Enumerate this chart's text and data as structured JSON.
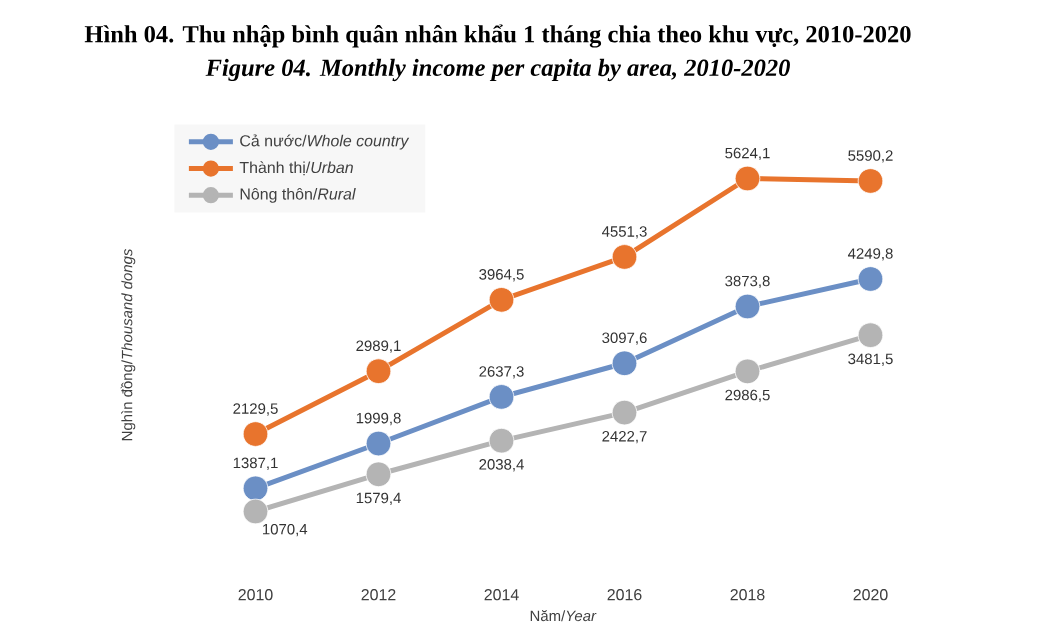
{
  "chart_data": {
    "type": "line",
    "title": "Hình 04. Thu nhập bình quân nhân khẩu 1 tháng chia theo khu vực, 2010-2020",
    "subtitle": "Figure 04. Monthly income per capita by area, 2010-2020",
    "xlabel": "Năm/*Year*",
    "ylabel": "Nghìn đồng/*Thousand dongs*",
    "categories": [
      "2010",
      "2012",
      "2014",
      "2016",
      "2018",
      "2020"
    ],
    "series": [
      {
        "name": "Cả nước/*Whole country*",
        "color": "#6b8fc5",
        "values": [
          1387.1,
          1999.8,
          2637.3,
          3097.6,
          3873.8,
          4249.8
        ],
        "value_labels": [
          "1387,1",
          "1999,8",
          "2637,3",
          "3097,6",
          "3873,8",
          "4249,8"
        ]
      },
      {
        "name": "Thành thị/*Urban*",
        "color": "#e8742d",
        "values": [
          2129.5,
          2989.1,
          3964.5,
          4551.3,
          5624.1,
          5590.2
        ],
        "value_labels": [
          "2129,5",
          "2989,1",
          "3964,5",
          "4551,3",
          "5624,1",
          "5590,2"
        ]
      },
      {
        "name": "Nông thôn/*Rural*",
        "color": "#b4b4b4",
        "values": [
          1070.4,
          1579.4,
          2038.4,
          2422.7,
          2986.5,
          3481.5
        ],
        "value_labels": [
          "1070,4",
          "1579,4",
          "2038,4",
          "2422,7",
          "2986,5",
          "3481,5"
        ]
      }
    ],
    "tick_labels": "x",
    "marker": "circle",
    "line_style": "solid",
    "legend": "top left"
  }
}
